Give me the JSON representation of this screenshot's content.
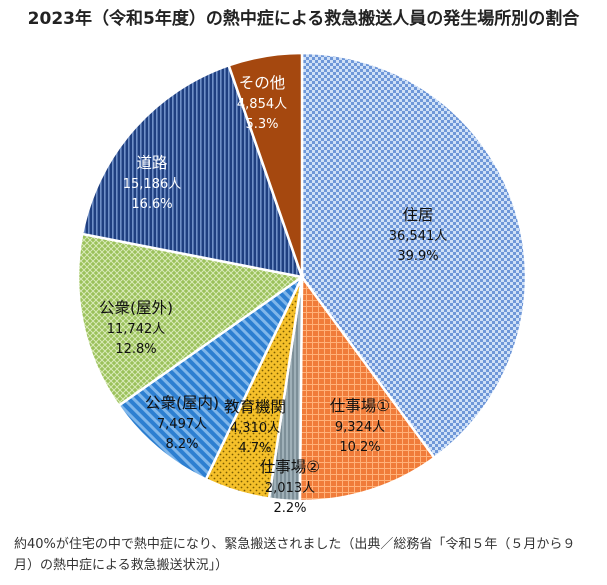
{
  "page": {
    "caption": "約40%が住宅の中で熱中症になり、緊急搬送されました（出典／総務省「令和５年（５月から９月）の熱中症による救急搬送状況」）"
  },
  "chart_data": {
    "type": "pie",
    "title": "2023年（令和5年度）の熱中症による救急搬送人員の発生場所別の割合",
    "unit": "人",
    "slices": [
      {
        "name": "住居",
        "count": "36,541人",
        "percent": "39.9%",
        "value": 39.9,
        "color": "#6f97d8",
        "pattern": "checker",
        "label_color": "#111111"
      },
      {
        "name": "仕事場①",
        "count": "9,324人",
        "percent": "10.2%",
        "value": 10.2,
        "color": "#f07c3a",
        "pattern": "grid",
        "label_color": "#111111"
      },
      {
        "name": "仕事場②",
        "count": "2,013人",
        "percent": "2.2%",
        "value": 2.2,
        "color": "#9fb0b8",
        "pattern": "vlines",
        "label_color": "#111111"
      },
      {
        "name": "教育機関",
        "count": "4,310人",
        "percent": "4.7%",
        "value": 4.7,
        "color": "#f5c02a",
        "pattern": "dots",
        "label_color": "#111111"
      },
      {
        "name": "公衆(屋内)",
        "count": "7,497人",
        "percent": "8.2%",
        "value": 8.2,
        "color": "#2d7fd1",
        "pattern": "diagonal",
        "label_color": "#111111"
      },
      {
        "name": "公衆(屋外)",
        "count": "11,742人",
        "percent": "12.8%",
        "value": 12.8,
        "color": "#9bc15b",
        "pattern": "cross",
        "label_color": "#111111"
      },
      {
        "name": "道路",
        "count": "15,186人",
        "percent": "16.6%",
        "value": 16.6,
        "color": "#1f3f80",
        "pattern": "vstripes",
        "label_color": "#ffffff"
      },
      {
        "name": "その他",
        "count": "4,854人",
        "percent": "5.3%",
        "value": 5.3,
        "color": "#a5480f",
        "pattern": "solid",
        "label_color": "#ffffff"
      }
    ]
  }
}
